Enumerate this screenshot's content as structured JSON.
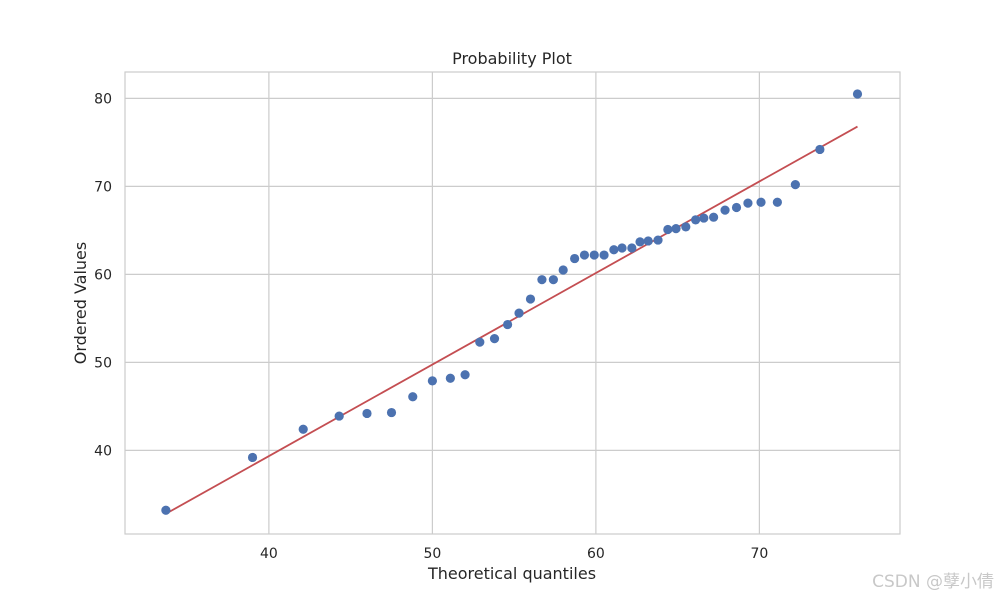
{
  "chart_data": {
    "type": "scatter",
    "title": "Probability Plot",
    "xlabel": "Theoretical quantiles",
    "ylabel": "Ordered Values",
    "xlim": [
      31.2,
      78.6
    ],
    "ylim": [
      30.5,
      83.0
    ],
    "xticks": [
      40,
      50,
      60,
      70
    ],
    "yticks": [
      40,
      50,
      60,
      70,
      80
    ],
    "grid": true,
    "points_color": "#4c72b0",
    "line_color": "#c44e52",
    "series": [
      {
        "kind": "points",
        "x": [
          33.7,
          39.0,
          42.1,
          44.3,
          46.0,
          47.5,
          48.8,
          50.0,
          51.1,
          52.0,
          52.9,
          53.8,
          54.6,
          55.3,
          56.0,
          56.7,
          57.4,
          58.0,
          58.7,
          59.3,
          59.9,
          60.5,
          61.1,
          61.6,
          62.2,
          62.7,
          63.2,
          63.8,
          64.4,
          64.9,
          65.5,
          66.1,
          66.6,
          67.2,
          67.9,
          68.6,
          69.3,
          70.1,
          71.1,
          72.2,
          73.7,
          76.0
        ],
        "y": [
          33.2,
          39.2,
          42.4,
          43.9,
          44.2,
          44.3,
          46.1,
          47.9,
          48.2,
          48.6,
          52.3,
          52.7,
          54.3,
          55.6,
          57.2,
          59.4,
          59.4,
          60.5,
          61.8,
          62.2,
          62.2,
          62.2,
          62.8,
          63.0,
          63.0,
          63.7,
          63.8,
          63.9,
          65.1,
          65.2,
          65.4,
          66.2,
          66.4,
          66.5,
          67.3,
          67.6,
          68.1,
          68.2,
          68.2,
          70.2,
          74.2,
          80.5
        ]
      },
      {
        "kind": "fit-line",
        "x": [
          33.7,
          76.0
        ],
        "y": [
          32.8,
          76.8
        ]
      }
    ]
  },
  "watermark": "CSDN @孽小倩"
}
